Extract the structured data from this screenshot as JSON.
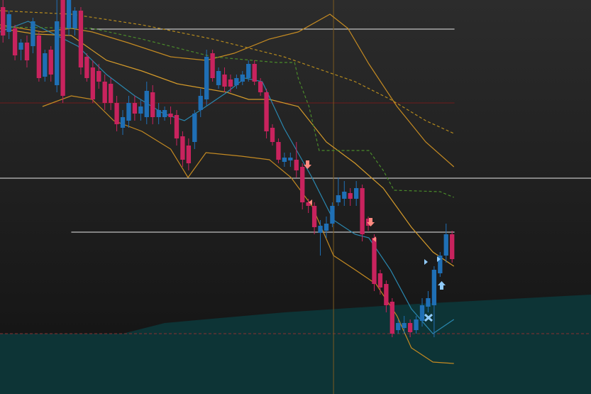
{
  "chart_data": {
    "type": "candlestick",
    "xlim": [
      -0.5,
      98.2
    ],
    "ylim": [
      0,
      555
    ],
    "up_color": "#1f6fb5",
    "down_color": "#c8235e",
    "open": [
      545,
      510,
      515,
      485,
      495,
      490,
      505,
      447,
      485,
      435,
      555,
      515,
      515,
      540,
      475,
      460,
      455,
      440,
      437,
      410,
      375,
      385,
      410,
      395,
      390,
      425,
      390,
      390,
      395,
      393,
      363,
      350,
      355,
      400,
      415,
      480,
      435,
      450,
      443,
      435,
      440,
      445,
      465,
      440,
      425,
      375,
      355,
      327,
      329,
      330,
      320,
      270,
      265,
      227,
      230,
      240,
      270,
      275,
      283,
      275,
      290,
      247,
      220,
      170,
      155,
      130,
      90,
      93,
      100,
      90,
      103,
      123,
      125,
      170,
      195,
      225
    ],
    "high": [
      555,
      540,
      520,
      500,
      505,
      530,
      510,
      485,
      490,
      555,
      555,
      555,
      545,
      545,
      480,
      470,
      465,
      450,
      445,
      420,
      400,
      420,
      420,
      415,
      440,
      435,
      410,
      405,
      405,
      400,
      370,
      360,
      400,
      430,
      485,
      485,
      460,
      460,
      450,
      450,
      455,
      470,
      470,
      445,
      430,
      380,
      360,
      340,
      340,
      355,
      325,
      275,
      270,
      245,
      250,
      270,
      305,
      300,
      290,
      300,
      295,
      250,
      225,
      175,
      160,
      135,
      105,
      110,
      105,
      110,
      135,
      145,
      180,
      200,
      240,
      230
    ],
    "low": [
      495,
      500,
      470,
      470,
      460,
      480,
      440,
      440,
      440,
      425,
      410,
      505,
      505,
      450,
      440,
      410,
      430,
      400,
      400,
      370,
      365,
      375,
      385,
      385,
      380,
      380,
      380,
      385,
      380,
      350,
      320,
      315,
      345,
      390,
      405,
      440,
      430,
      425,
      425,
      430,
      435,
      440,
      435,
      420,
      360,
      350,
      325,
      320,
      320,
      305,
      260,
      255,
      225,
      195,
      220,
      235,
      265,
      265,
      265,
      265,
      215,
      230,
      145,
      140,
      115,
      80,
      85,
      85,
      80,
      85,
      95,
      115,
      80,
      165,
      185,
      185
    ],
    "close": [
      505,
      535,
      477,
      495,
      470,
      525,
      445,
      480,
      450,
      525,
      420,
      555,
      540,
      460,
      445,
      415,
      440,
      410,
      410,
      380,
      390,
      410,
      395,
      405,
      427,
      390,
      400,
      400,
      390,
      360,
      330,
      325,
      395,
      420,
      475,
      445,
      455,
      433,
      433,
      445,
      450,
      465,
      440,
      425,
      370,
      355,
      330,
      333,
      333,
      315,
      270,
      265,
      235,
      237,
      240,
      265,
      280,
      285,
      275,
      290,
      225,
      237,
      155,
      150,
      125,
      85,
      100,
      100,
      87,
      105,
      125,
      135,
      175,
      195,
      225,
      190
    ],
    "area": {
      "color": "#0d3436",
      "x": [
        -0.5,
        20,
        27,
        47,
        65,
        98.2
      ],
      "values": [
        85,
        85,
        100,
        115,
        125,
        140
      ]
    },
    "levels": [
      {
        "value": 514,
        "x": [
          14.7,
          75.4
        ],
        "color": "#e8e8e8",
        "dash": false
      },
      {
        "value": 304,
        "x": [
          -0.5,
          98.2
        ],
        "color": "#e8e8e8",
        "dash": false
      },
      {
        "value": 228,
        "x": [
          11.4,
          75.4
        ],
        "color": "#e8e8e8",
        "dash": false
      },
      {
        "value": 85,
        "x": [
          -0.5,
          98.2
        ],
        "color": "#8a3030",
        "dash": true
      },
      {
        "value": 410,
        "x": [
          -0.5,
          75.4
        ],
        "color": "#6e1a1a",
        "dash": false
      }
    ],
    "vline": {
      "x": 55.2,
      "color": "#7a5a20"
    },
    "lines": [
      {
        "color": "#c48a22",
        "dash": false,
        "x": [
          -0.5,
          6.6,
          11.4,
          14.9,
          20.8,
          28,
          33.9,
          38.6,
          44.5,
          49.3,
          54.6,
          57.6,
          61.1,
          65.8,
          70.6,
          75.3
        ],
        "values": [
          520,
          510,
          515,
          510,
          495,
          475,
          470,
          480,
          500,
          510,
          535,
          515,
          465,
          405,
          355,
          320
        ]
      },
      {
        "color": "#d49a2a",
        "dash": false,
        "x": [
          -0.5,
          5.4,
          11.4,
          17.3,
          23.2,
          29.1,
          33.9,
          37.4,
          41,
          44.5,
          49.3,
          54,
          58.8,
          63.5,
          68.2,
          71.8,
          75.3
        ],
        "values": [
          515,
          507,
          505,
          470,
          455,
          437,
          430,
          425,
          415,
          415,
          405,
          355,
          325,
          290,
          235,
          200,
          180
        ]
      },
      {
        "color": "#c48a22",
        "dash": false,
        "x": [
          6.6,
          11.4,
          14.9,
          18.5,
          23.2,
          28,
          30.9,
          33.9,
          39.8,
          44.5,
          48.1,
          51.6,
          55.2,
          58.8,
          62.3,
          65.8,
          68.2,
          71.8,
          75.3
        ],
        "values": [
          405,
          420,
          415,
          385,
          370,
          345,
          305,
          340,
          335,
          330,
          305,
          265,
          195,
          175,
          155,
          110,
          65,
          45,
          43
        ]
      },
      {
        "color": "#2a88b0",
        "dash": false,
        "x": [
          -0.5,
          4.2,
          9,
          12.5,
          17.3,
          22,
          26.8,
          30.3,
          33.9,
          37.4,
          40.4,
          43.3,
          46.9,
          51.6,
          55.2,
          58.8,
          61.1,
          64.7,
          68.2,
          71.8,
          75.3
        ],
        "values": [
          510,
          525,
          505,
          490,
          450,
          420,
          395,
          385,
          405,
          425,
          445,
          440,
          375,
          305,
          245,
          225,
          220,
          175,
          120,
          85,
          105
        ]
      },
      {
        "color": "#b58a1e",
        "dash": true,
        "x": [
          -0.5,
          11.4,
          23.2,
          35,
          46.9,
          58.8,
          64.7,
          70.6,
          75.3
        ],
        "values": [
          540,
          535,
          520,
          500,
          475,
          440,
          415,
          385,
          367
        ]
      },
      {
        "color": "#4a8a2a",
        "dash": true,
        "x": [
          -0.5,
          14.9,
          23.2,
          35,
          45.7,
          48.7,
          49.3,
          51.1,
          52.8,
          61.1,
          63.5,
          65.3,
          73,
          75.3
        ],
        "values": [
          517,
          515,
          500,
          475,
          467,
          467,
          445,
          405,
          343,
          343,
          315,
          287,
          285,
          277
        ]
      }
    ]
  }
}
